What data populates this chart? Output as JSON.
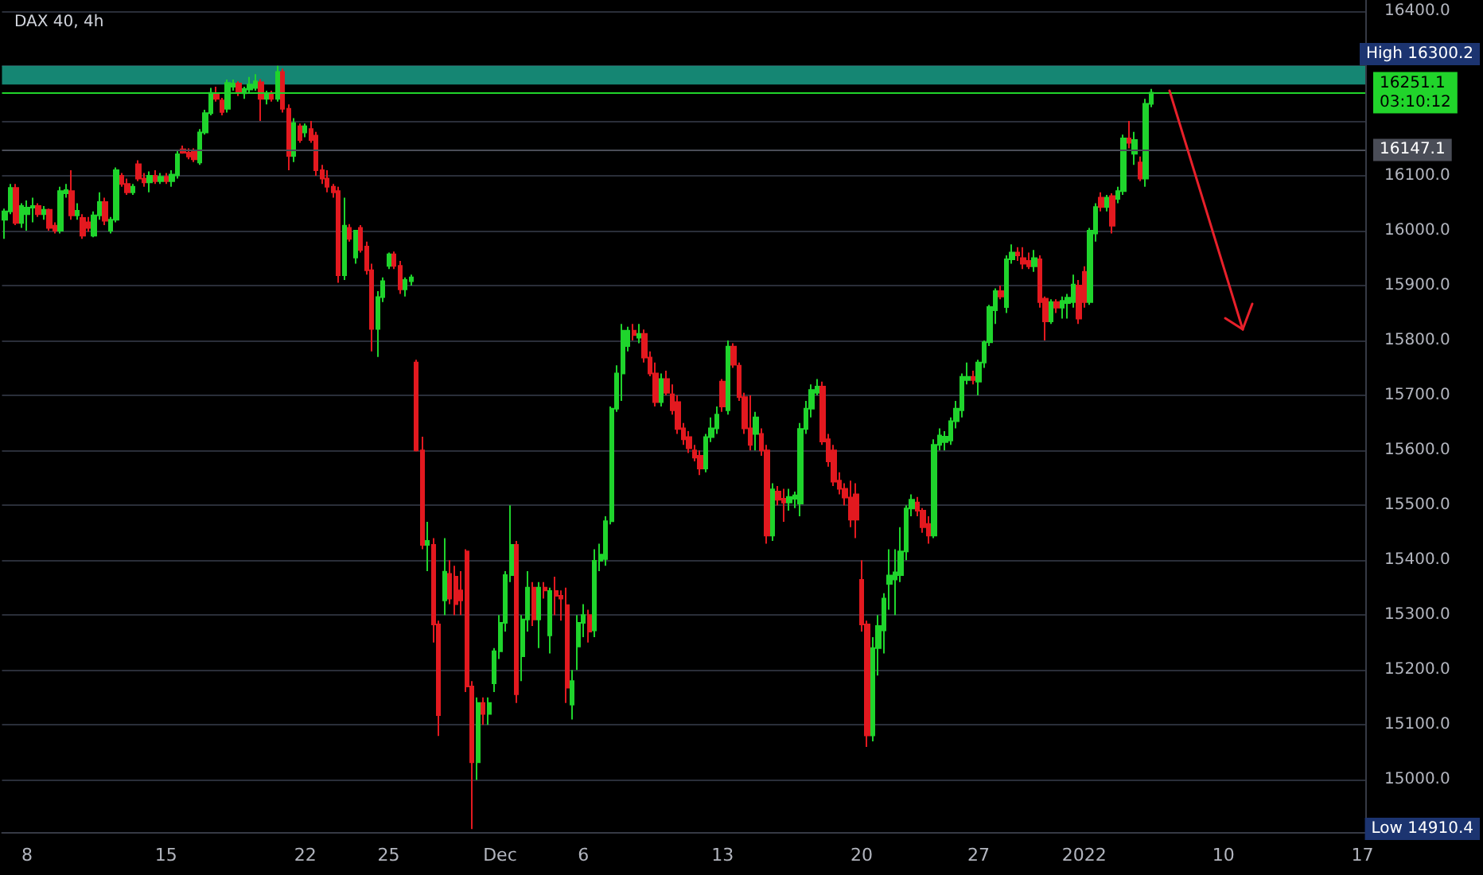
{
  "chart_data": {
    "type": "candlestick",
    "title": "DAX 40, 4h",
    "categories": [
      null,
      null,
      null,
      null,
      "8",
      null,
      null,
      null,
      null,
      null,
      null,
      null,
      null,
      null,
      null,
      null,
      null,
      null,
      null,
      null,
      null,
      null,
      null,
      null,
      null,
      null,
      null,
      null,
      null,
      "15",
      null,
      null,
      null,
      null,
      null,
      null,
      null,
      null,
      null,
      null,
      null,
      null,
      null,
      null,
      null,
      null,
      null,
      null,
      null,
      null,
      null,
      null,
      null,
      null,
      "22",
      null,
      null,
      null,
      null,
      null,
      null,
      null,
      null,
      null,
      null,
      null,
      null,
      null,
      null,
      "25",
      null,
      null,
      null,
      null,
      null,
      null,
      null,
      null,
      null,
      null,
      null,
      null,
      null,
      null,
      null,
      null,
      null,
      null,
      null,
      "Dec",
      null,
      null,
      null,
      null,
      null,
      null,
      null,
      null,
      null,
      null,
      null,
      null,
      null,
      null,
      "6",
      null,
      null,
      null,
      null,
      null,
      null,
      null,
      null,
      null,
      null,
      null,
      null,
      null,
      null,
      null,
      null,
      null,
      null,
      null,
      null,
      null,
      null,
      null,
      null,
      "13",
      null,
      null,
      null,
      null,
      null,
      null,
      null,
      null,
      null,
      null,
      null,
      null,
      null,
      null,
      null,
      null,
      null,
      null,
      null,
      null,
      null,
      null,
      null,
      null,
      "20",
      null,
      null,
      null,
      null,
      null,
      null,
      null,
      null,
      null,
      null,
      null,
      null,
      null,
      null,
      null,
      null,
      null,
      null,
      null,
      null,
      "27",
      null,
      null,
      null,
      null,
      null,
      null,
      null,
      null,
      null,
      null,
      null,
      null,
      null,
      null,
      null,
      null,
      null,
      null,
      "2022",
      null,
      null,
      null,
      null,
      null,
      null,
      null,
      null,
      null,
      null,
      null,
      null,
      null,
      null,
      null,
      null,
      null,
      null,
      null,
      null,
      null,
      null,
      null,
      null,
      "10",
      null,
      null,
      null,
      null,
      null,
      null,
      null,
      null,
      null,
      null,
      null,
      null,
      null,
      null,
      null,
      null,
      null,
      null,
      null,
      null,
      null,
      null,
      null,
      null,
      "17"
    ],
    "ohlc": [
      [
        16020,
        16040,
        15985,
        16035
      ],
      [
        16035,
        16085,
        16030,
        16078
      ],
      [
        16078,
        16085,
        16010,
        16014
      ],
      [
        16014,
        16050,
        16005,
        16045
      ],
      [
        16030,
        16055,
        16000,
        16042
      ],
      [
        16042,
        16060,
        16015,
        16045
      ],
      [
        16045,
        16050,
        16025,
        16030
      ],
      [
        16030,
        16045,
        16020,
        16038
      ],
      [
        16038,
        16040,
        16000,
        16005
      ],
      [
        16009,
        16015,
        15995,
        16000
      ],
      [
        16000,
        16080,
        15995,
        16072
      ],
      [
        16068,
        16085,
        16060,
        16074
      ],
      [
        16072,
        16110,
        16020,
        16028
      ],
      [
        16028,
        16050,
        16020,
        16036
      ],
      [
        16023,
        16030,
        15985,
        15991
      ],
      [
        16015,
        16025,
        15998,
        16005
      ],
      [
        15991,
        16035,
        15988,
        16028
      ],
      [
        16028,
        16070,
        16020,
        16052
      ],
      [
        16052,
        16060,
        16010,
        16018
      ],
      [
        16000,
        16025,
        15995,
        16020
      ],
      [
        16020,
        16115,
        16015,
        16110
      ],
      [
        16100,
        16105,
        16080,
        16085
      ],
      [
        16085,
        16095,
        16065,
        16070
      ],
      [
        16070,
        16085,
        16065,
        16080
      ],
      [
        16121,
        16128,
        16090,
        16095
      ],
      [
        16095,
        16105,
        16080,
        16088
      ],
      [
        16088,
        16108,
        16070,
        16100
      ],
      [
        16100,
        16110,
        16085,
        16090
      ],
      [
        16090,
        16105,
        16085,
        16098
      ],
      [
        16098,
        16105,
        16085,
        16090
      ],
      [
        16090,
        16110,
        16080,
        16102
      ],
      [
        16101,
        16145,
        16095,
        16139
      ],
      [
        16148,
        16155,
        16140,
        16142
      ],
      [
        16142,
        16150,
        16130,
        16135
      ],
      [
        16145,
        16150,
        16125,
        16130
      ],
      [
        16124,
        16185,
        16120,
        16179
      ],
      [
        16179,
        16220,
        16175,
        16214
      ],
      [
        16214,
        16260,
        16210,
        16251
      ],
      [
        16250,
        16262,
        16235,
        16240
      ],
      [
        16237,
        16242,
        16210,
        16216
      ],
      [
        16222,
        16275,
        16215,
        16269
      ],
      [
        16262,
        16275,
        16255,
        16268
      ],
      [
        16268,
        16272,
        16245,
        16252
      ],
      [
        16250,
        16262,
        16240,
        16258
      ],
      [
        16257,
        16280,
        16250,
        16266
      ],
      [
        16260,
        16285,
        16255,
        16272
      ],
      [
        16270,
        16276,
        16200,
        16240
      ],
      [
        16240,
        16255,
        16230,
        16248
      ],
      [
        16248,
        16255,
        16235,
        16240
      ],
      [
        16240,
        16300.2,
        16235,
        16289
      ],
      [
        16289,
        16295,
        16215,
        16222
      ],
      [
        16222,
        16230,
        16110,
        16136
      ],
      [
        16136,
        16205,
        16125,
        16196
      ],
      [
        16190,
        16195,
        16160,
        16165
      ],
      [
        16179,
        16195,
        16170,
        16190
      ],
      [
        16185,
        16200,
        16160,
        16165
      ],
      [
        16173,
        16180,
        16100,
        16110
      ],
      [
        16110,
        16120,
        16085,
        16095
      ],
      [
        16095,
        16110,
        16070,
        16080
      ],
      [
        16080,
        16085,
        16060,
        16070
      ],
      [
        16072,
        16080,
        15905,
        15919
      ],
      [
        15919,
        16060,
        15910,
        16009
      ],
      [
        16005,
        16012,
        15980,
        15985
      ],
      [
        15951,
        16000,
        15940,
        16000
      ],
      [
        16005,
        16010,
        15960,
        15965
      ],
      [
        15971,
        15980,
        15920,
        15928
      ],
      [
        15928,
        15940,
        15780,
        15821
      ],
      [
        15821,
        15890,
        15770,
        15879
      ],
      [
        15879,
        15915,
        15870,
        15908
      ],
      [
        15936,
        15960,
        15930,
        15957
      ],
      [
        15957,
        15962,
        15930,
        15936
      ],
      [
        15936,
        15945,
        15885,
        15893
      ],
      [
        15893,
        15915,
        15880,
        15910
      ],
      [
        15908,
        15920,
        15900,
        15915
      ],
      [
        15760,
        15765,
        15598,
        15600
      ],
      [
        15600,
        15625,
        15420,
        15428
      ],
      [
        15428,
        15470,
        15380,
        15435
      ],
      [
        15428,
        15440,
        15250,
        15283
      ],
      [
        15283,
        15290,
        15080,
        15118
      ],
      [
        15327,
        15440,
        15300,
        15379
      ],
      [
        15375,
        15400,
        15320,
        15330
      ],
      [
        15370,
        15390,
        15300,
        15320
      ],
      [
        15345,
        15380,
        15300,
        15327
      ],
      [
        15416,
        15420,
        15160,
        15170
      ],
      [
        15170,
        15180,
        14910.4,
        15032
      ],
      [
        15032,
        15150,
        15000,
        15140
      ],
      [
        15140,
        15150,
        15100,
        15120
      ],
      [
        15120,
        15150,
        15100,
        15140
      ],
      [
        15176,
        15240,
        15160,
        15234
      ],
      [
        15234,
        15300,
        15220,
        15286
      ],
      [
        15286,
        15380,
        15270,
        15373
      ],
      [
        15373,
        15500,
        15360,
        15428
      ],
      [
        15428,
        15435,
        15140,
        15156
      ],
      [
        15225,
        15300,
        15180,
        15292
      ],
      [
        15292,
        15380,
        15270,
        15350
      ],
      [
        15350,
        15360,
        15280,
        15292
      ],
      [
        15292,
        15360,
        15240,
        15350
      ],
      [
        15350,
        15360,
        15330,
        15345
      ],
      [
        15263,
        15350,
        15230,
        15344
      ],
      [
        15344,
        15370,
        15300,
        15335
      ],
      [
        15335,
        15345,
        15290,
        15330
      ],
      [
        15318,
        15350,
        15140,
        15168
      ],
      [
        15137,
        15200,
        15110,
        15180
      ],
      [
        15243,
        15300,
        15200,
        15286
      ],
      [
        15286,
        15320,
        15260,
        15300
      ],
      [
        15300,
        15310,
        15250,
        15270
      ],
      [
        15272,
        15420,
        15260,
        15399
      ],
      [
        15399,
        15430,
        15380,
        15410
      ],
      [
        15402,
        15480,
        15390,
        15471
      ],
      [
        15471,
        15680,
        15465,
        15676
      ],
      [
        15676,
        15755,
        15670,
        15740
      ],
      [
        15740,
        15830,
        15690,
        15818
      ],
      [
        15790,
        15825,
        15780,
        15818
      ],
      [
        15818,
        15830,
        15800,
        15810
      ],
      [
        15805,
        15830,
        15795,
        15812
      ],
      [
        15812,
        15820,
        15760,
        15769
      ],
      [
        15769,
        15780,
        15735,
        15740
      ],
      [
        15740,
        15760,
        15680,
        15688
      ],
      [
        15688,
        15740,
        15680,
        15730
      ],
      [
        15730,
        15745,
        15700,
        15705
      ],
      [
        15702,
        15720,
        15665,
        15673
      ],
      [
        15688,
        15700,
        15630,
        15639
      ],
      [
        15640,
        15650,
        15610,
        15620
      ],
      [
        15624,
        15635,
        15595,
        15604
      ],
      [
        15600,
        15610,
        15580,
        15587
      ],
      [
        15590,
        15600,
        15555,
        15567
      ],
      [
        15567,
        15630,
        15560,
        15624
      ],
      [
        15624,
        15660,
        15615,
        15640
      ],
      [
        15640,
        15680,
        15630,
        15665
      ],
      [
        15725,
        15730,
        15670,
        15680
      ],
      [
        15673,
        15800,
        15665,
        15789
      ],
      [
        15789,
        15795,
        15750,
        15756
      ],
      [
        15754,
        15760,
        15690,
        15697
      ],
      [
        15697,
        15705,
        15630,
        15640
      ],
      [
        15640,
        15700,
        15600,
        15610
      ],
      [
        15630,
        15670,
        15600,
        15660
      ],
      [
        15630,
        15640,
        15590,
        15600
      ],
      [
        15600,
        15610,
        15430,
        15445
      ],
      [
        15445,
        15540,
        15435,
        15529
      ],
      [
        15525,
        15535,
        15500,
        15510
      ],
      [
        15512,
        15530,
        15470,
        15505
      ],
      [
        15505,
        15530,
        15490,
        15515
      ],
      [
        15512,
        15525,
        15495,
        15518
      ],
      [
        15503,
        15650,
        15480,
        15639
      ],
      [
        15639,
        15690,
        15630,
        15676
      ],
      [
        15676,
        15720,
        15660,
        15710
      ],
      [
        15705,
        15730,
        15700,
        15716
      ],
      [
        15716,
        15725,
        15610,
        15616
      ],
      [
        15620,
        15630,
        15570,
        15580
      ],
      [
        15600,
        15610,
        15535,
        15543
      ],
      [
        15545,
        15560,
        15520,
        15530
      ],
      [
        15530,
        15540,
        15500,
        15514
      ],
      [
        15514,
        15545,
        15460,
        15474
      ],
      [
        15520,
        15540,
        15440,
        15474
      ],
      [
        15364,
        15400,
        15270,
        15283
      ],
      [
        15283,
        15290,
        15060,
        15081
      ],
      [
        15081,
        15260,
        15070,
        15240
      ],
      [
        15240,
        15300,
        15190,
        15280
      ],
      [
        15272,
        15340,
        15230,
        15330
      ],
      [
        15357,
        15420,
        15310,
        15372
      ],
      [
        15365,
        15420,
        15300,
        15378
      ],
      [
        15373,
        15460,
        15360,
        15416
      ],
      [
        15416,
        15500,
        15400,
        15494
      ],
      [
        15494,
        15520,
        15480,
        15510
      ],
      [
        15505,
        15515,
        15480,
        15490
      ],
      [
        15490,
        15495,
        15450,
        15460
      ],
      [
        15466,
        15480,
        15430,
        15445
      ],
      [
        15445,
        15620,
        15440,
        15610
      ],
      [
        15610,
        15640,
        15600,
        15627
      ],
      [
        15615,
        15635,
        15600,
        15625
      ],
      [
        15618,
        15660,
        15610,
        15653
      ],
      [
        15653,
        15690,
        15640,
        15676
      ],
      [
        15673,
        15740,
        15660,
        15734
      ],
      [
        15728,
        15760,
        15720,
        15734
      ],
      [
        15734,
        15745,
        15720,
        15728
      ],
      [
        15725,
        15765,
        15700,
        15760
      ],
      [
        15760,
        15800,
        15750,
        15797
      ],
      [
        15797,
        15865,
        15790,
        15861
      ],
      [
        15855,
        15895,
        15830,
        15890
      ],
      [
        15890,
        15900,
        15875,
        15880
      ],
      [
        15861,
        15955,
        15850,
        15948
      ],
      [
        15948,
        15975,
        15940,
        15960
      ],
      [
        15960,
        15970,
        15945,
        15955
      ],
      [
        15950,
        15970,
        15930,
        15940
      ],
      [
        15945,
        15960,
        15930,
        15935
      ],
      [
        15935,
        15965,
        15925,
        15950
      ],
      [
        15948,
        15955,
        15860,
        15870
      ],
      [
        15876,
        15880,
        15800,
        15835
      ],
      [
        15835,
        15875,
        15830,
        15870
      ],
      [
        15870,
        15875,
        15850,
        15860
      ],
      [
        15860,
        15880,
        15840,
        15872
      ],
      [
        15868,
        15885,
        15840,
        15878
      ],
      [
        15870,
        15920,
        15860,
        15902
      ],
      [
        15900,
        15910,
        15830,
        15840
      ],
      [
        15925,
        15935,
        15860,
        15870
      ],
      [
        15870,
        16005,
        15865,
        16000
      ],
      [
        15995,
        16050,
        15980,
        16043
      ],
      [
        16060,
        16070,
        16035,
        16043
      ],
      [
        16043,
        16065,
        16035,
        16060
      ],
      [
        16063,
        16068,
        15995,
        16009
      ],
      [
        16058,
        16080,
        16050,
        16072
      ],
      [
        16072,
        16175,
        16065,
        16168
      ],
      [
        16168,
        16200,
        16150,
        16160
      ],
      [
        16140,
        16180,
        16120,
        16165
      ],
      [
        16124,
        16135,
        16090,
        16095
      ],
      [
        16095,
        16240,
        16080,
        16231
      ],
      [
        16231,
        16258,
        16225,
        16251.1
      ],
      null,
      null,
      null,
      null,
      null,
      null,
      null,
      null,
      null,
      null,
      null,
      null,
      null,
      null,
      null,
      null,
      null,
      null,
      null,
      null,
      null,
      null,
      null,
      null,
      null,
      null,
      null,
      null,
      null,
      null,
      null,
      null,
      null,
      null,
      null,
      null,
      null,
      null
    ],
    "ylim": [
      14905,
      16420
    ],
    "yticks": [
      {
        "value": 16400,
        "label": "16400.0"
      },
      {
        "value": 16300,
        "label": null
      },
      {
        "value": 16200,
        "label": null
      },
      {
        "value": 16100,
        "label": "16100.0"
      },
      {
        "value": 16000,
        "label": "16000.0"
      },
      {
        "value": 15900,
        "label": "15900.0"
      },
      {
        "value": 15800,
        "label": "15800.0"
      },
      {
        "value": 15700,
        "label": "15700.0"
      },
      {
        "value": 15600,
        "label": "15600.0"
      },
      {
        "value": 15500,
        "label": "15500.0"
      },
      {
        "value": 15400,
        "label": "15400.0"
      },
      {
        "value": 15300,
        "label": "15300.0"
      },
      {
        "value": 15200,
        "label": "15200.0"
      },
      {
        "value": 15100,
        "label": "15100.0"
      },
      {
        "value": 15000,
        "label": "15000.0"
      }
    ],
    "bands": [
      {
        "axis": "y",
        "from": 16266,
        "to": 16300,
        "color": "#17957f"
      }
    ],
    "ref_lines": [
      {
        "axis": "y",
        "value": 16251.1,
        "label": "16251.1\n03:10:12",
        "color": "#21d42b"
      },
      {
        "axis": "y",
        "value": 16147.1,
        "label": "16147.1",
        "color": "#4a4d57"
      }
    ],
    "annotations": [
      "High 16300.2",
      "Low 14910.4"
    ],
    "grid": "y"
  }
}
